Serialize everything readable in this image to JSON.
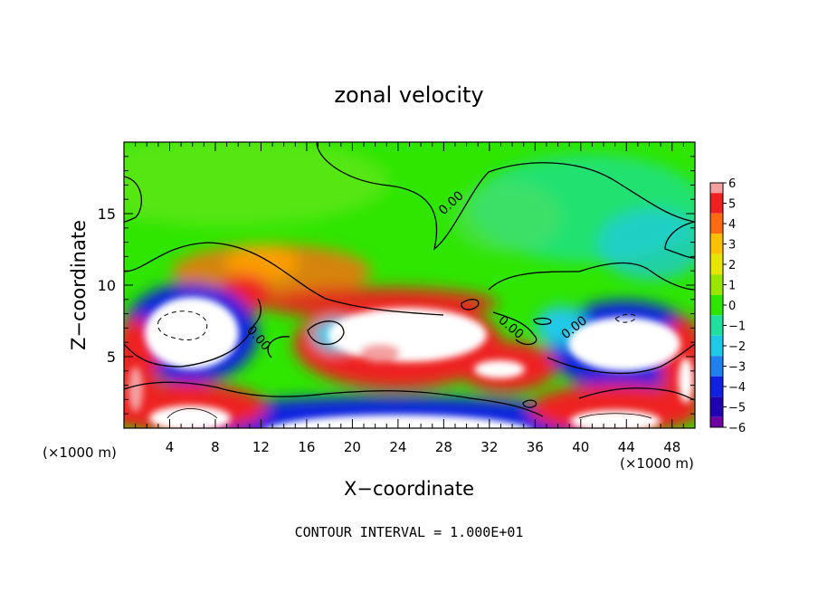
{
  "chart_data": {
    "type": "heatmap",
    "title": "zonal velocity",
    "xlabel": "X−coordinate",
    "ylabel": "Z−coordinate",
    "x_unit_left": "(×1000 m)",
    "x_unit_right": "(×1000 m)",
    "xlim": [
      0,
      50
    ],
    "ylim": [
      0,
      20
    ],
    "x_ticks": [
      4,
      8,
      12,
      16,
      20,
      24,
      28,
      32,
      36,
      40,
      44,
      48
    ],
    "y_ticks": [
      5,
      10,
      15
    ],
    "colorbar": {
      "ticks": [
        "6",
        "5",
        "4",
        "3",
        "2",
        "1",
        "0",
        "−1",
        "−2",
        "−3",
        "−4",
        "−5",
        "−6"
      ],
      "colors": [
        "#f4a0a0",
        "#ee2020",
        "#ff6a10",
        "#ffc000",
        "#e6e600",
        "#9be600",
        "#2ee600",
        "#20e0a0",
        "#20c8e8",
        "#2080f0",
        "#1020e0",
        "#2000b0",
        "#7000a0"
      ]
    },
    "contour_labels": [
      "0.00",
      "0.00",
      "0.00",
      "0.00",
      "0.00"
    ],
    "footer": "CONTOUR INTERVAL = 1.000E+01"
  }
}
